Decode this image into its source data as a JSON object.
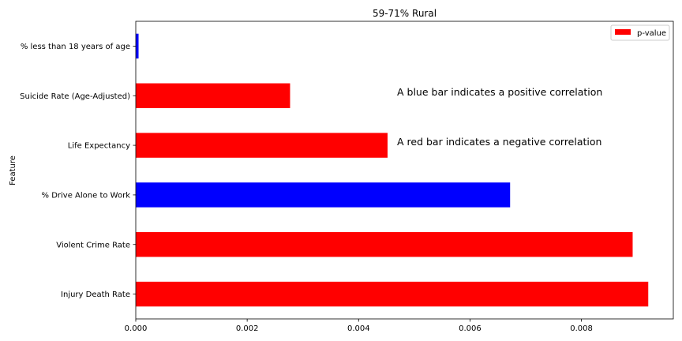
{
  "chart_data": {
    "type": "bar",
    "orientation": "horizontal",
    "title": "59-71% Rural",
    "xlabel": "",
    "ylabel": "Feature",
    "categories": [
      "Injury Death Rate",
      "Violent Crime Rate",
      "% Drive Alone to Work",
      "Life Expectancy",
      "Suicide Rate (Age-Adjusted)",
      "% less than 18 years of age"
    ],
    "series": [
      {
        "name": "p-value",
        "values": [
          0.0092,
          0.00892,
          0.00672,
          0.00452,
          0.00277,
          5e-05
        ],
        "colors": [
          "#ff0000",
          "#ff0000",
          "#0000ff",
          "#ff0000",
          "#ff0000",
          "#0000ff"
        ]
      }
    ],
    "xlim": [
      0,
      0.00965
    ],
    "xticks": [
      0,
      0.002,
      0.004,
      0.006,
      0.008
    ],
    "xtick_labels": [
      "0.000",
      "0.002",
      "0.004",
      "0.006",
      "0.008"
    ],
    "legend": {
      "position": "top-right",
      "label": "p-value",
      "color": "#ff0000"
    },
    "annotations": [
      "A blue bar indicates a positive correlation",
      "A red bar indicates a negative correlation"
    ],
    "grid": false
  }
}
